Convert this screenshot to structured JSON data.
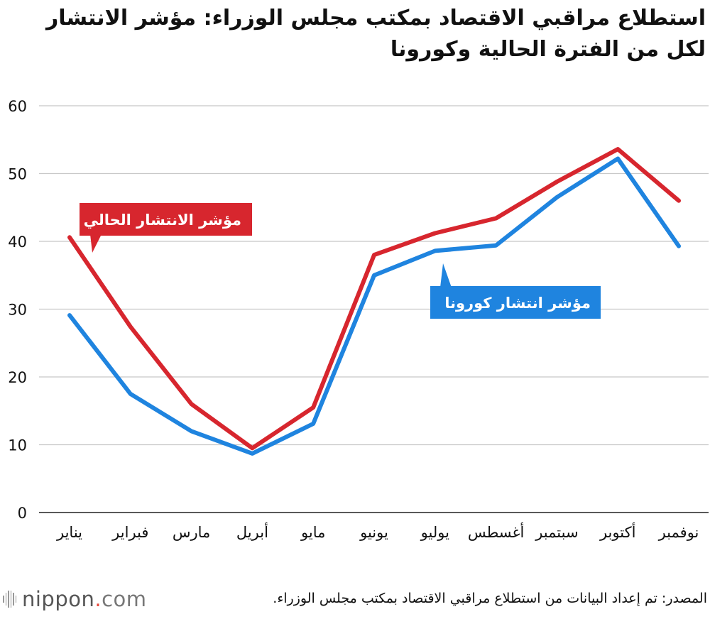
{
  "title": "استطلاع مراقبي الاقتصاد بمكتب مجلس الوزراء: مؤشر الانتشار لكل من الفترة الحالية وكورونا",
  "source": "المصدر: تم إعداد البيانات من استطلاع مراقبي الاقتصاد بمكتب مجلس الوزراء.",
  "logo": {
    "name": "nippon",
    "dot": ".",
    "tld": "com"
  },
  "chart_data": {
    "type": "line",
    "categories": [
      "يناير",
      "فبراير",
      "مارس",
      "أبريل",
      "مايو",
      "يونيو",
      "يوليو",
      "أغسطس",
      "سبتمبر",
      "أكتوبر",
      "نوفمبر"
    ],
    "series": [
      {
        "name": "مؤشر الانتشار الحالي",
        "color": "#d7262e",
        "values": [
          40.6,
          27.4,
          16.0,
          9.5,
          15.5,
          38.0,
          41.2,
          43.4,
          48.8,
          53.6,
          46.0
        ]
      },
      {
        "name": "مؤشر انتشار كورونا",
        "color": "#1f84df",
        "values": [
          29.1,
          17.5,
          12.0,
          8.7,
          13.1,
          35.0,
          38.6,
          39.4,
          46.5,
          52.2,
          39.3
        ]
      }
    ],
    "yticks": [
      "0",
      "10",
      "20",
      "30",
      "40",
      "50",
      "60"
    ],
    "ylim": [
      0,
      60
    ],
    "grid": true,
    "legend": "inline callouts"
  }
}
